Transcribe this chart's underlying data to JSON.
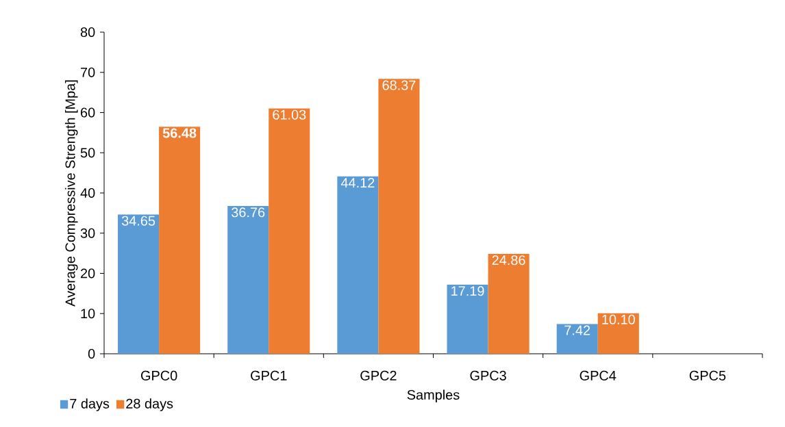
{
  "chart_data": {
    "type": "bar",
    "xlabel": "Samples",
    "ylabel": "Average Compressive Strength [Mpa]",
    "categories": [
      "GPC0",
      "GPC1",
      "GPC2",
      "GPC3",
      "GPC4",
      "GPC5"
    ],
    "series": [
      {
        "name": "7 days",
        "color": "#5b9bd5",
        "values": [
          34.65,
          36.76,
          44.12,
          17.19,
          7.42,
          null
        ],
        "value_labels": [
          "34.65",
          "36.76",
          "44.12",
          "17.19",
          "7.42",
          null
        ]
      },
      {
        "name": "28 days",
        "color": "#ed7d31",
        "values": [
          56.48,
          61.03,
          68.37,
          24.86,
          10.1,
          null
        ],
        "value_labels": [
          "**56.48**",
          "61.03",
          "68.37",
          "24.86",
          "10.10",
          null
        ]
      }
    ],
    "ylim": [
      0,
      80
    ],
    "yticks": [
      0,
      10,
      20,
      30,
      40,
      50,
      60,
      70,
      80
    ],
    "grid": false,
    "legend": "bottom left"
  }
}
